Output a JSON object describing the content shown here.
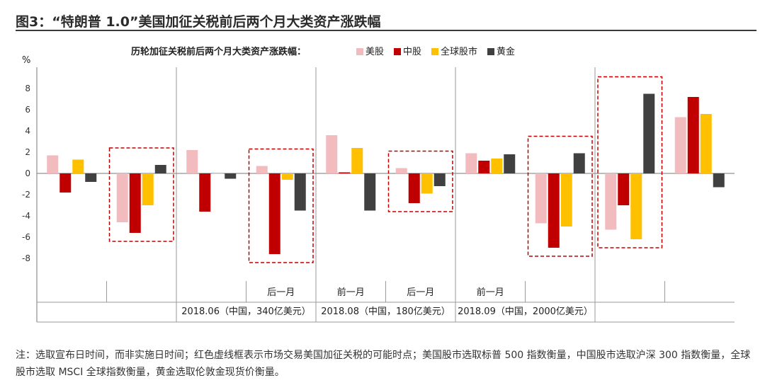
{
  "header": {
    "title": "图3：“特朗普 1.0”美国加征关税前后两个月大类资产涨跌幅"
  },
  "note": "注：选取宣布日时间，而非实施日时间；红色虚线框表示市场交易美国加征关税的可能时点；美国股市选取标普 500 指数衡量，中国股市选取沪深 300 指数衡量，全球股市选取 MSCI 全球指数衡量，黄金选取伦敦金现货价衡量。",
  "colors": {
    "us_stock": "#f2bcbf",
    "cn_stock": "#c00000",
    "global_stock": "#ffc000",
    "gold": "#404040",
    "highlight_box": "#c00000"
  },
  "chart_data": {
    "type": "bar",
    "title": "历轮加征关税前后两个月大类资产涨跌幅：",
    "ylabel": "%",
    "ylim": [
      -10,
      10
    ],
    "yticks": [
      "8",
      "6",
      "4",
      "2",
      "0",
      "-2",
      "-4",
      "-6",
      "-8"
    ],
    "series_names": [
      "美股",
      "中股",
      "全球股市",
      "黄金"
    ],
    "categories": [
      "",
      "",
      "",
      "后一月",
      "前一月",
      "后一月",
      "前一月",
      "",
      "",
      ""
    ],
    "event_labels": [
      "",
      "2018.06（中国，340亿美元）",
      "2018.08（中国，180亿美元）",
      "2018.09（中国，2000亿美元）",
      ""
    ],
    "series": [
      {
        "name": "美股",
        "values": [
          1.7,
          -4.6,
          2.2,
          0.7,
          3.6,
          0.5,
          1.9,
          -4.7,
          -5.3,
          5.3
        ]
      },
      {
        "name": "中股",
        "values": [
          -1.8,
          -5.6,
          -3.6,
          -7.6,
          0.1,
          -2.8,
          1.2,
          -7.0,
          -3.0,
          7.2
        ]
      },
      {
        "name": "全球股市",
        "values": [
          1.3,
          -3.0,
          0.0,
          -0.6,
          2.4,
          -1.9,
          1.4,
          -5.0,
          -6.2,
          5.6
        ]
      },
      {
        "name": "黄金",
        "values": [
          -0.8,
          0.8,
          -0.5,
          -3.5,
          -3.5,
          -1.2,
          1.8,
          1.9,
          7.5,
          -1.3
        ]
      }
    ],
    "highlighted_groups": [
      1,
      3,
      5,
      7,
      8
    ],
    "grid": false,
    "legend_position": "top"
  }
}
